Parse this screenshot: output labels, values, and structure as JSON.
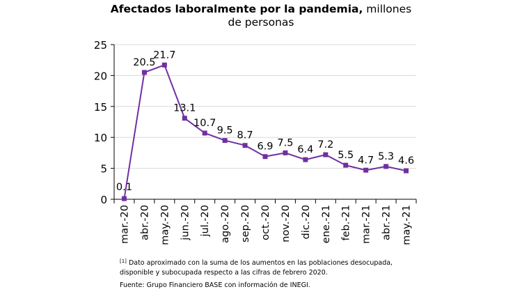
{
  "header": {
    "title_bold": "Afectados laboralmente por la pandemia,",
    "title_rest": " millones",
    "title_line2": "de personas"
  },
  "chart_data": {
    "type": "line",
    "categories": [
      "mar.-20",
      "abr.-20",
      "may.-20",
      "jun.-20",
      "jul.-20",
      "ago.-20",
      "sep.-20",
      "oct.-20",
      "nov.-20",
      "dic.-20",
      "ene.-21",
      "feb.-21",
      "mar.-21",
      "abr.-21",
      "may.-21"
    ],
    "values": [
      0.1,
      20.5,
      21.7,
      13.1,
      10.7,
      9.5,
      8.7,
      6.9,
      7.5,
      6.4,
      7.2,
      5.5,
      4.7,
      5.3,
      4.6
    ],
    "data_labels": [
      "0.1",
      "20.5",
      "21.7",
      "13.1",
      "10.7",
      "9.5",
      "8.7",
      "6.9",
      "7.5",
      "6.4",
      "7.2",
      "5.5",
      "4.7",
      "5.3",
      "4.6"
    ],
    "yticks": [
      "0",
      "5",
      "10",
      "15",
      "20",
      "25"
    ],
    "ylim": [
      0,
      25
    ],
    "grid": true,
    "line_color": "#7030a0",
    "marker": "square"
  },
  "footnote": {
    "mark": "[1]",
    "text": " Dato aproximado con la suma de los aumentos en las poblaciones desocupada, disponible y subocupada respecto a las cifras de febrero 2020."
  },
  "source": "Fuente: Grupo Financiero BASE con información de INEGI."
}
